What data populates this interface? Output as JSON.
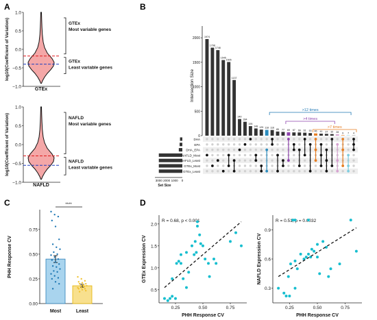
{
  "panels": {
    "A": {
      "label": "A",
      "violins": [
        {
          "xlabel": "GTEx",
          "ylabel": "log10(Coefficient of Variation)",
          "yticks": [
            "1.0",
            "0.5",
            "0.0",
            "−0.5",
            "−1.0"
          ],
          "ylim": [
            -1.0,
            1.0
          ],
          "fill": "#f4a7a7",
          "upper_line": -0.18,
          "lower_line": -0.4,
          "annot_top": [
            "GTEx",
            "Most variable genes"
          ],
          "annot_bottom": [
            "GTEx",
            "Least variable genes"
          ]
        },
        {
          "xlabel": "NAFLD",
          "ylabel": "log10(Coefficient of Variation)",
          "yticks": [
            "1.0",
            "0.5",
            "0.0",
            "−0.5",
            "−1.0"
          ],
          "ylim": [
            -1.0,
            1.0
          ],
          "fill": "#f4a7a7",
          "upper_line": -0.3,
          "lower_line": -0.55,
          "annot_top": [
            "NAFLD",
            "Most variable genes"
          ],
          "annot_bottom": [
            "NAFLD",
            "Least variable genes"
          ]
        }
      ]
    },
    "B": {
      "label": "B",
      "ylabel": "Intersection Size",
      "yticks": [
        "2000",
        "1500",
        "1000",
        "500",
        "0"
      ],
      "set_size_label": "Set Size",
      "set_size_ticks": [
        "3000",
        "2000",
        "1000",
        "0"
      ],
      "sets": [
        "DHA",
        "EPA",
        "DHA_EPA",
        "NAFLD_Most",
        "NAFLD_Least",
        "GTEx_Most",
        "GTEx_Least"
      ],
      "brackets": [
        {
          "label": ">12 times",
          "color": "#1f77b4"
        },
        {
          "label": ">4 times",
          "color": "#8e44ad"
        },
        {
          "label": ">7 times",
          "color": "#e67e22"
        }
      ]
    },
    "C": {
      "label": "C",
      "ylabel": "PHH Response CV",
      "yticks": [
        "0.75",
        "0.50",
        "0.25",
        "0.00"
      ],
      "significance": "****",
      "colors": {
        "most": "#a9d4ee",
        "least": "#f8e08e"
      }
    },
    "D": {
      "label": "D",
      "xlabel": "PHH Response CV",
      "plots": [
        {
          "ylabel": "GTEx Expression CV",
          "stat": "R = 0.68, p < 0.001",
          "yticks": [
            "2.0",
            "1.5",
            "1.0",
            "0.5"
          ],
          "xticks": [
            "0.25",
            "0.50",
            "0.75"
          ]
        },
        {
          "ylabel": "NAFLD Expression CV",
          "stat": "R = 0.51, p = 0.0032",
          "yticks": [
            "0.9",
            "0.6",
            "0.3"
          ],
          "xticks": [
            "0.25",
            "0.50",
            "0.75"
          ]
        }
      ]
    }
  },
  "chart_data": [
    {
      "type": "violin",
      "title": "",
      "groups": [
        "GTEx",
        "NAFLD"
      ],
      "ylabel": "log10(Coefficient of Variation)",
      "ylim": [
        -1.0,
        1.0
      ],
      "thresholds": {
        "GTEx": {
          "most": -0.18,
          "least": -0.4
        },
        "NAFLD": {
          "most": -0.3,
          "least": -0.55
        }
      }
    },
    {
      "type": "bar",
      "subtype": "upset",
      "ylabel": "Intersection Size",
      "ylim": [
        0,
        2100
      ],
      "values": [
        1974,
        1798,
        1748,
        1545,
        1505,
        1137,
        340,
        284,
        195,
        148,
        125,
        118,
        116,
        85,
        77,
        69,
        67,
        66,
        61,
        53,
        46,
        41,
        37,
        32,
        28,
        9,
        7,
        4
      ],
      "labeled_values": [
        "1974",
        "1798",
        "1748",
        "1545",
        "1505",
        "1137",
        "340",
        "284",
        "195",
        "148",
        "125",
        "118",
        "116",
        "85",
        "77",
        "69",
        "67",
        "66",
        "61",
        "53",
        "46",
        "41",
        "37",
        "32",
        "28",
        "9",
        "7",
        "4"
      ],
      "bar_colors": [
        "#333",
        "#333",
        "#333",
        "#333",
        "#333",
        "#333",
        "#333",
        "#333",
        "#333",
        "#333",
        "#333",
        "#2b8cbe",
        "#333",
        "#333",
        "#333",
        "#8e44ad",
        "#333",
        "#333",
        "#333",
        "#333",
        "#e67e22",
        "#333",
        "#333",
        "#333",
        "#d6a3d0",
        "#e67e22",
        "#7fcde0",
        "#333"
      ],
      "set_sizes": {
        "DHA": 300,
        "EPA": 350,
        "DHA_EPA": 450,
        "NAFLD_Most": 3000,
        "NAFLD_Least": 3000,
        "GTEx_Most": 3000,
        "GTEx_Least": 3000
      },
      "set_size_xlim": [
        3500,
        0
      ]
    },
    {
      "type": "bar",
      "categories": [
        "Most",
        "Least"
      ],
      "values": [
        0.45,
        0.18
      ],
      "errors": [
        0.035,
        0.015
      ],
      "ylabel": "PHH Response CV",
      "ylim": [
        0,
        0.95
      ],
      "points": {
        "Most": [
          0.93,
          0.9,
          0.88,
          0.84,
          0.78,
          0.65,
          0.6,
          0.57,
          0.55,
          0.52,
          0.5,
          0.49,
          0.47,
          0.45,
          0.44,
          0.42,
          0.4,
          0.38,
          0.37,
          0.35,
          0.33,
          0.32,
          0.3,
          0.28,
          0.26,
          0.25,
          0.22,
          0.2,
          0.15
        ],
        "Least": [
          0.27,
          0.25,
          0.23,
          0.22,
          0.21,
          0.2,
          0.2,
          0.19,
          0.18,
          0.18,
          0.17,
          0.16,
          0.16,
          0.15,
          0.15,
          0.14,
          0.13,
          0.12
        ]
      }
    },
    {
      "type": "scatter",
      "xlabel": "PHH Response CV",
      "ylabel": "GTEx Expression CV",
      "xlim": [
        0.1,
        0.9
      ],
      "ylim": [
        0.2,
        2.2
      ],
      "annotation": "R = 0.68, p < 0.001",
      "points": [
        [
          0.15,
          0.3
        ],
        [
          0.18,
          0.25
        ],
        [
          0.2,
          0.3
        ],
        [
          0.22,
          0.35
        ],
        [
          0.25,
          0.3
        ],
        [
          0.22,
          0.75
        ],
        [
          0.26,
          1.1
        ],
        [
          0.28,
          1.15
        ],
        [
          0.3,
          1.1
        ],
        [
          0.3,
          1.3
        ],
        [
          0.32,
          0.75
        ],
        [
          0.35,
          0.55
        ],
        [
          0.35,
          1.35
        ],
        [
          0.37,
          0.9
        ],
        [
          0.4,
          1.5
        ],
        [
          0.42,
          1.3
        ],
        [
          0.43,
          1.6
        ],
        [
          0.44,
          1.35
        ],
        [
          0.45,
          2.05
        ],
        [
          0.47,
          1.75
        ],
        [
          0.48,
          1.55
        ],
        [
          0.5,
          1.5
        ],
        [
          0.52,
          1.2
        ],
        [
          0.55,
          1.1
        ],
        [
          0.56,
          0.8
        ],
        [
          0.6,
          1.2
        ],
        [
          0.62,
          1.1
        ],
        [
          0.75,
          1.6
        ],
        [
          0.8,
          1.8
        ],
        [
          0.85,
          1.5
        ],
        [
          0.45,
          1.95
        ]
      ],
      "trend": [
        [
          0.15,
          0.55
        ],
        [
          0.85,
          2.05
        ]
      ]
    },
    {
      "type": "scatter",
      "xlabel": "PHH Response CV",
      "ylabel": "NAFLD Expression CV",
      "xlim": [
        0.1,
        0.9
      ],
      "ylim": [
        0.15,
        1.05
      ],
      "annotation": "R = 0.51, p = 0.0032",
      "points": [
        [
          0.15,
          0.3
        ],
        [
          0.2,
          0.25
        ],
        [
          0.22,
          0.22
        ],
        [
          0.25,
          0.22
        ],
        [
          0.24,
          0.42
        ],
        [
          0.26,
          0.55
        ],
        [
          0.28,
          1.0
        ],
        [
          0.3,
          1.0
        ],
        [
          0.3,
          0.58
        ],
        [
          0.32,
          0.5
        ],
        [
          0.35,
          0.65
        ],
        [
          0.38,
          0.6
        ],
        [
          0.4,
          0.62
        ],
        [
          0.42,
          0.65
        ],
        [
          0.44,
          0.62
        ],
        [
          0.45,
          0.7
        ],
        [
          0.47,
          0.68
        ],
        [
          0.5,
          0.62
        ],
        [
          0.5,
          0.75
        ],
        [
          0.52,
          0.45
        ],
        [
          0.55,
          0.78
        ],
        [
          0.58,
          0.72
        ],
        [
          0.6,
          0.42
        ],
        [
          0.62,
          0.5
        ],
        [
          0.7,
          0.55
        ],
        [
          0.8,
          1.0
        ],
        [
          0.85,
          0.68
        ],
        [
          0.42,
          1.0
        ],
        [
          0.3,
          0.3
        ]
      ],
      "trend": [
        [
          0.15,
          0.42
        ],
        [
          0.85,
          0.92
        ]
      ]
    }
  ]
}
